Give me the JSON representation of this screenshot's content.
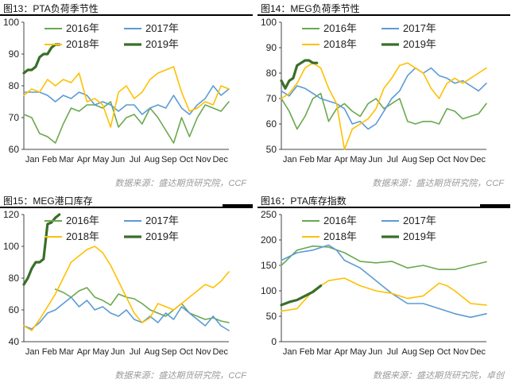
{
  "panels": [
    {
      "title": "图13：PTA负荷季节性",
      "source": "数据来源：盛达期货研究院，CCF"
    },
    {
      "title": "图14：MEG负荷季节性",
      "source": "数据来源：盛达期货研究院，CCF"
    },
    {
      "title": "图15：MEG港口库存",
      "source": "数据来源：盛达期货研究院，CCF"
    },
    {
      "title": "图16：PTA库存指数",
      "source": "数据来源：盛达期货研究院，卓创"
    }
  ],
  "chart_data": [
    {
      "type": "line",
      "title": "图13：PTA负荷季节性",
      "xlabel": "",
      "ylabel": "",
      "ylim": [
        60,
        100
      ],
      "yticks": [
        60,
        70,
        80,
        90,
        100
      ],
      "x_tick_labels": [
        "Jan",
        "Feb",
        "Mar",
        "Apr",
        "May",
        "Jun",
        "Jul",
        "Aug",
        "Sep",
        "Oct",
        "Nov",
        "Dec"
      ],
      "x_domain": [
        0,
        52
      ],
      "legend_position": "top",
      "series": [
        {
          "name": "2016年",
          "color": "#6aa84f",
          "x": [
            0,
            2,
            4,
            6,
            8,
            10,
            12,
            14,
            16,
            18,
            20,
            22,
            24,
            26,
            28,
            30,
            32,
            34,
            36,
            38,
            40,
            42,
            44,
            46,
            48,
            50,
            52
          ],
          "values": [
            71,
            70,
            65,
            64,
            62,
            68,
            73,
            72,
            74,
            74,
            73,
            75,
            67,
            70,
            71,
            68,
            73,
            70,
            66,
            62,
            70,
            64,
            70,
            74,
            73,
            72,
            75
          ]
        },
        {
          "name": "2017年",
          "color": "#5b9bd5",
          "x": [
            0,
            2,
            4,
            6,
            8,
            10,
            12,
            14,
            16,
            18,
            20,
            22,
            24,
            26,
            28,
            30,
            32,
            34,
            36,
            38,
            40,
            42,
            44,
            46,
            48,
            50,
            52
          ],
          "values": [
            78,
            78,
            78,
            77,
            75,
            77,
            76,
            78,
            77,
            74,
            75,
            74,
            72,
            74,
            74,
            71,
            73,
            74,
            73,
            77,
            73,
            71,
            74,
            76,
            80,
            77,
            79
          ]
        },
        {
          "name": "2018年",
          "color": "#ffc000",
          "x": [
            0,
            2,
            4,
            6,
            8,
            10,
            12,
            14,
            16,
            18,
            20,
            22,
            24,
            26,
            28,
            30,
            32,
            34,
            36,
            38,
            40,
            42,
            44,
            46,
            48,
            50,
            52
          ],
          "values": [
            77,
            79,
            78,
            82,
            80,
            82,
            81,
            84,
            75,
            76,
            74,
            67,
            78,
            80,
            76,
            78,
            82,
            84,
            85,
            86,
            78,
            72,
            73,
            75,
            74,
            80,
            79
          ]
        },
        {
          "name": "2019年",
          "color": "#3a6e2a",
          "bold": true,
          "x": [
            0,
            1,
            2,
            3,
            4,
            5,
            6,
            7,
            8,
            9
          ],
          "values": [
            84,
            85,
            85,
            86,
            89,
            90,
            90,
            92,
            93,
            93
          ]
        }
      ]
    },
    {
      "type": "line",
      "title": "图14：MEG负荷季节性",
      "xlabel": "",
      "ylabel": "",
      "ylim": [
        50,
        100
      ],
      "yticks": [
        50,
        60,
        70,
        80,
        90,
        100
      ],
      "x_tick_labels": [
        "Jan",
        "Feb",
        "Mar",
        "Apr",
        "May",
        "Jun",
        "Jul",
        "Aug",
        "Sep",
        "Oct",
        "Nov",
        "Dec"
      ],
      "x_domain": [
        0,
        52
      ],
      "legend_position": "top",
      "series": [
        {
          "name": "2016年",
          "color": "#6aa84f",
          "x": [
            0,
            2,
            4,
            6,
            8,
            10,
            12,
            14,
            16,
            18,
            20,
            22,
            24,
            26,
            28,
            30,
            32,
            34,
            36,
            38,
            40,
            42,
            44,
            46,
            48,
            50,
            52
          ],
          "values": [
            70,
            65,
            58,
            63,
            70,
            72,
            61,
            66,
            68,
            65,
            63,
            68,
            70,
            66,
            68,
            70,
            61,
            60,
            61,
            61,
            60,
            66,
            65,
            62,
            63,
            64,
            68
          ]
        },
        {
          "name": "2017年",
          "color": "#5b9bd5",
          "x": [
            0,
            2,
            4,
            6,
            8,
            10,
            12,
            14,
            16,
            18,
            20,
            22,
            24,
            26,
            28,
            30,
            32,
            34,
            36,
            38,
            40,
            42,
            44,
            46,
            48,
            50,
            52
          ],
          "values": [
            73,
            71,
            75,
            74,
            72,
            70,
            69,
            68,
            66,
            60,
            61,
            58,
            60,
            65,
            70,
            73,
            79,
            82,
            80,
            82,
            79,
            78,
            76,
            77,
            75,
            73,
            76
          ]
        },
        {
          "name": "2018年",
          "color": "#ffc000",
          "x": [
            0,
            2,
            4,
            6,
            8,
            10,
            12,
            14,
            16,
            18,
            20,
            22,
            24,
            26,
            28,
            30,
            32,
            34,
            36,
            38,
            40,
            42,
            44,
            46,
            48,
            50,
            52
          ],
          "values": [
            70,
            72,
            76,
            82,
            84,
            82,
            74,
            68,
            50,
            58,
            60,
            62,
            66,
            74,
            78,
            83,
            84,
            82,
            80,
            74,
            70,
            76,
            78,
            76,
            78,
            80,
            82
          ]
        },
        {
          "name": "2019年",
          "color": "#3a6e2a",
          "bold": true,
          "x": [
            0,
            1,
            2,
            3,
            4,
            5,
            6,
            7,
            8,
            9
          ],
          "values": [
            77,
            74,
            77,
            78,
            83,
            84,
            85,
            85,
            84,
            84
          ]
        }
      ]
    },
    {
      "type": "line",
      "title": "图15：MEG港口库存",
      "xlabel": "",
      "ylabel": "",
      "ylim": [
        40,
        120
      ],
      "yticks": [
        40,
        60,
        80,
        100,
        120
      ],
      "x_tick_labels": [
        "Jan",
        "Feb",
        "Mar",
        "Apr",
        "May",
        "Jun",
        "Jul",
        "Aug",
        "Sep",
        "Oct",
        "Nov",
        "Dec"
      ],
      "x_domain": [
        0,
        52
      ],
      "legend_position": "top",
      "series": [
        {
          "name": "2016年",
          "color": "#6aa84f",
          "x": [
            8,
            10,
            12,
            14,
            16,
            18,
            20,
            22,
            24,
            26,
            28,
            30,
            32,
            34,
            36,
            38,
            40,
            42,
            44,
            46,
            48,
            50,
            52
          ],
          "values": [
            73,
            71,
            68,
            72,
            74,
            68,
            66,
            63,
            70,
            68,
            67,
            64,
            60,
            58,
            56,
            60,
            64,
            58,
            56,
            54,
            55,
            53,
            52
          ]
        },
        {
          "name": "2017年",
          "color": "#5b9bd5",
          "x": [
            0,
            2,
            4,
            6,
            8,
            10,
            12,
            14,
            16,
            18,
            20,
            22,
            24,
            26,
            28,
            30,
            32,
            34,
            36,
            38,
            40,
            42,
            44,
            46,
            48,
            50,
            52
          ],
          "values": [
            50,
            48,
            52,
            58,
            60,
            64,
            68,
            62,
            66,
            60,
            62,
            58,
            56,
            60,
            54,
            52,
            56,
            52,
            58,
            54,
            62,
            58,
            54,
            50,
            56,
            50,
            47
          ]
        },
        {
          "name": "2018年",
          "color": "#ffc000",
          "x": [
            0,
            2,
            4,
            6,
            8,
            10,
            12,
            14,
            16,
            18,
            20,
            22,
            24,
            26,
            28,
            30,
            32,
            34,
            36,
            38,
            40,
            42,
            44,
            46,
            48,
            50,
            52
          ],
          "values": [
            50,
            47,
            54,
            62,
            70,
            80,
            90,
            94,
            98,
            100,
            96,
            88,
            78,
            68,
            58,
            52,
            55,
            64,
            62,
            60,
            64,
            68,
            72,
            76,
            74,
            78,
            84
          ]
        },
        {
          "name": "2019年",
          "color": "#3a6e2a",
          "bold": true,
          "x": [
            0,
            1,
            2,
            3,
            4,
            5,
            6,
            7,
            8,
            9
          ],
          "values": [
            76,
            80,
            86,
            90,
            90,
            92,
            114,
            115,
            118,
            120
          ]
        }
      ]
    },
    {
      "type": "line",
      "title": "图16：PTA库存指数",
      "xlabel": "",
      "ylabel": "",
      "ylim": [
        0,
        250
      ],
      "yticks": [
        0,
        50,
        100,
        150,
        200,
        250
      ],
      "x_tick_labels": [
        "Jan",
        "Feb",
        "Mar",
        "Apr",
        "May",
        "Jun",
        "Jul",
        "Aug",
        "Sep",
        "Oct",
        "Nov",
        "Dec"
      ],
      "x_domain": [
        0,
        52
      ],
      "legend_position": "top",
      "series": [
        {
          "name": "2016年",
          "color": "#6aa84f",
          "x": [
            0,
            4,
            8,
            12,
            16,
            20,
            24,
            28,
            32,
            36,
            40,
            44,
            48,
            52
          ],
          "values": [
            150,
            180,
            188,
            186,
            175,
            158,
            155,
            158,
            145,
            150,
            142,
            142,
            150,
            157
          ]
        },
        {
          "name": "2017年",
          "color": "#5b9bd5",
          "x": [
            0,
            4,
            8,
            12,
            14,
            16,
            20,
            24,
            28,
            32,
            36,
            40,
            44,
            48,
            52
          ],
          "values": [
            160,
            175,
            180,
            190,
            180,
            160,
            145,
            120,
            95,
            75,
            75,
            65,
            55,
            48,
            55
          ]
        },
        {
          "name": "2018年",
          "color": "#ffc000",
          "x": [
            0,
            4,
            8,
            12,
            16,
            20,
            24,
            28,
            32,
            36,
            40,
            42,
            44,
            48,
            52
          ],
          "values": [
            60,
            65,
            100,
            120,
            125,
            110,
            100,
            95,
            85,
            90,
            115,
            110,
            100,
            75,
            72
          ]
        },
        {
          "name": "2019年",
          "color": "#3a6e2a",
          "bold": true,
          "x": [
            0,
            2,
            4,
            6,
            8,
            10
          ],
          "values": [
            72,
            78,
            82,
            90,
            98,
            110
          ]
        }
      ]
    }
  ]
}
